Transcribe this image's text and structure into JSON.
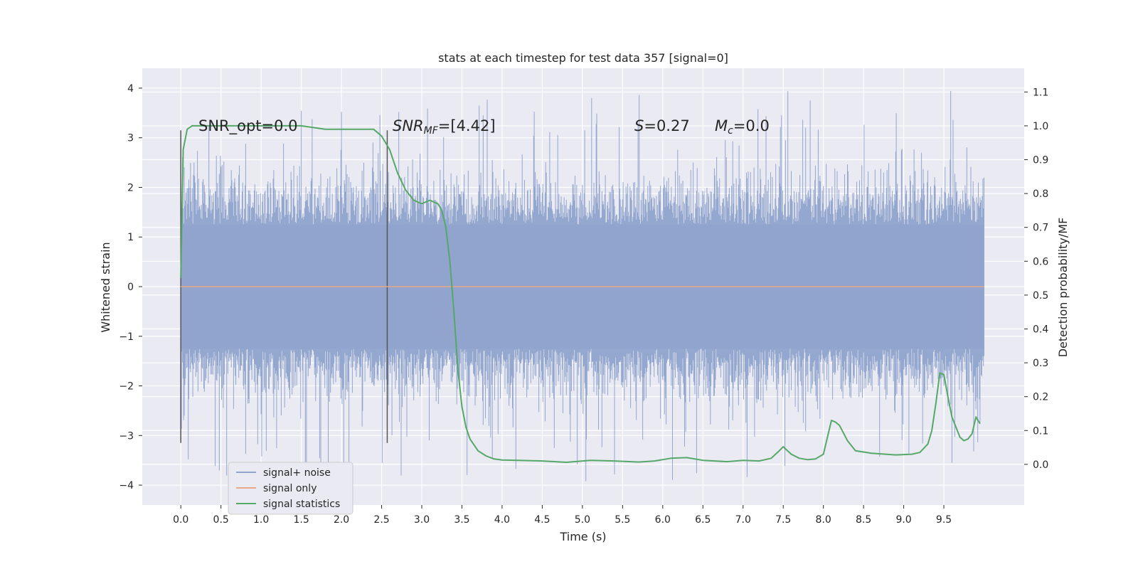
{
  "chart_data": {
    "type": "line",
    "title": "stats at each timestep for test data 357 [signal=0]",
    "xlabel": "Time (s)",
    "ylabel": "Whitened strain",
    "y2label": "Detection probability/MF",
    "xlim": [
      -0.48,
      10.5
    ],
    "ylim": [
      -4.4,
      4.4
    ],
    "y2lim": [
      -0.12,
      1.17
    ],
    "x_ticks": [
      "0.0",
      "0.5",
      "1.0",
      "1.5",
      "2.0",
      "2.5",
      "3.0",
      "3.5",
      "4.0",
      "4.5",
      "5.0",
      "5.5",
      "6.0",
      "6.5",
      "7.0",
      "7.5",
      "8.0",
      "8.5",
      "9.0",
      "9.5"
    ],
    "y_ticks": [
      "4",
      "3",
      "2",
      "1",
      "0",
      "−1",
      "−2",
      "−3",
      "−4"
    ],
    "y2_ticks": [
      "1.1",
      "1.0",
      "0.9",
      "0.8",
      "0.7",
      "0.6",
      "0.5",
      "0.4",
      "0.3",
      "0.2",
      "0.1",
      "0.0"
    ],
    "grid": true,
    "legend_placement": "lower-left",
    "annotations": {
      "snr_opt": "SNR_opt=0.0",
      "snr_mf": "SNR",
      "snr_mf_sub": "MF",
      "snr_mf_value": "=[4.42]",
      "s_stat": "S",
      "s_value": "=0.27",
      "mc": "M",
      "mc_sub": "c",
      "mc_value": "=0.0"
    },
    "vertical_markers": [
      0.0,
      2.57
    ],
    "series": [
      {
        "name": "signal+ noise",
        "color": "#8fa3cc",
        "description_range": [
          0.0,
          10.0
        ],
        "noise_band": {
          "core": 1.25,
          "typical_peak": 2.6,
          "max_peak": 4.0,
          "min_peak": -4.1
        }
      },
      {
        "name": "signal only",
        "color": "#e8a88a",
        "x": [
          0.0,
          10.0
        ],
        "values": [
          0.0,
          0.0
        ]
      },
      {
        "name": "signal statistics",
        "color": "#55a868",
        "axis": "right",
        "x": [
          0.0,
          0.03,
          0.08,
          0.14,
          0.2,
          0.3,
          0.5,
          0.8,
          1.0,
          1.3,
          1.5,
          1.8,
          2.0,
          2.2,
          2.4,
          2.5,
          2.6,
          2.7,
          2.8,
          2.9,
          3.0,
          3.1,
          3.2,
          3.25,
          3.3,
          3.35,
          3.4,
          3.45,
          3.5,
          3.55,
          3.6,
          3.7,
          3.8,
          3.9,
          4.0,
          4.2,
          4.5,
          4.8,
          5.1,
          5.4,
          5.7,
          5.9,
          6.1,
          6.3,
          6.5,
          6.8,
          7.0,
          7.2,
          7.35,
          7.45,
          7.5,
          7.6,
          7.7,
          7.8,
          7.9,
          8.0,
          8.1,
          8.15,
          8.2,
          8.3,
          8.4,
          8.6,
          8.9,
          9.1,
          9.2,
          9.3,
          9.35,
          9.4,
          9.45,
          9.5,
          9.55,
          9.6,
          9.7,
          9.75,
          9.8,
          9.85,
          9.9,
          9.95
        ],
        "values": [
          0.55,
          0.93,
          0.99,
          1.0,
          1.0,
          1.0,
          1.0,
          1.0,
          1.0,
          1.0,
          1.0,
          0.99,
          0.99,
          0.99,
          0.99,
          0.97,
          0.93,
          0.86,
          0.81,
          0.78,
          0.77,
          0.78,
          0.77,
          0.75,
          0.7,
          0.6,
          0.45,
          0.28,
          0.17,
          0.11,
          0.075,
          0.04,
          0.025,
          0.016,
          0.013,
          0.012,
          0.01,
          0.006,
          0.012,
          0.01,
          0.007,
          0.01,
          0.018,
          0.02,
          0.012,
          0.008,
          0.012,
          0.01,
          0.018,
          0.04,
          0.052,
          0.03,
          0.018,
          0.014,
          0.016,
          0.03,
          0.13,
          0.125,
          0.115,
          0.07,
          0.04,
          0.033,
          0.028,
          0.03,
          0.035,
          0.06,
          0.1,
          0.18,
          0.27,
          0.265,
          0.2,
          0.14,
          0.08,
          0.07,
          0.075,
          0.09,
          0.14,
          0.12
        ]
      }
    ]
  }
}
